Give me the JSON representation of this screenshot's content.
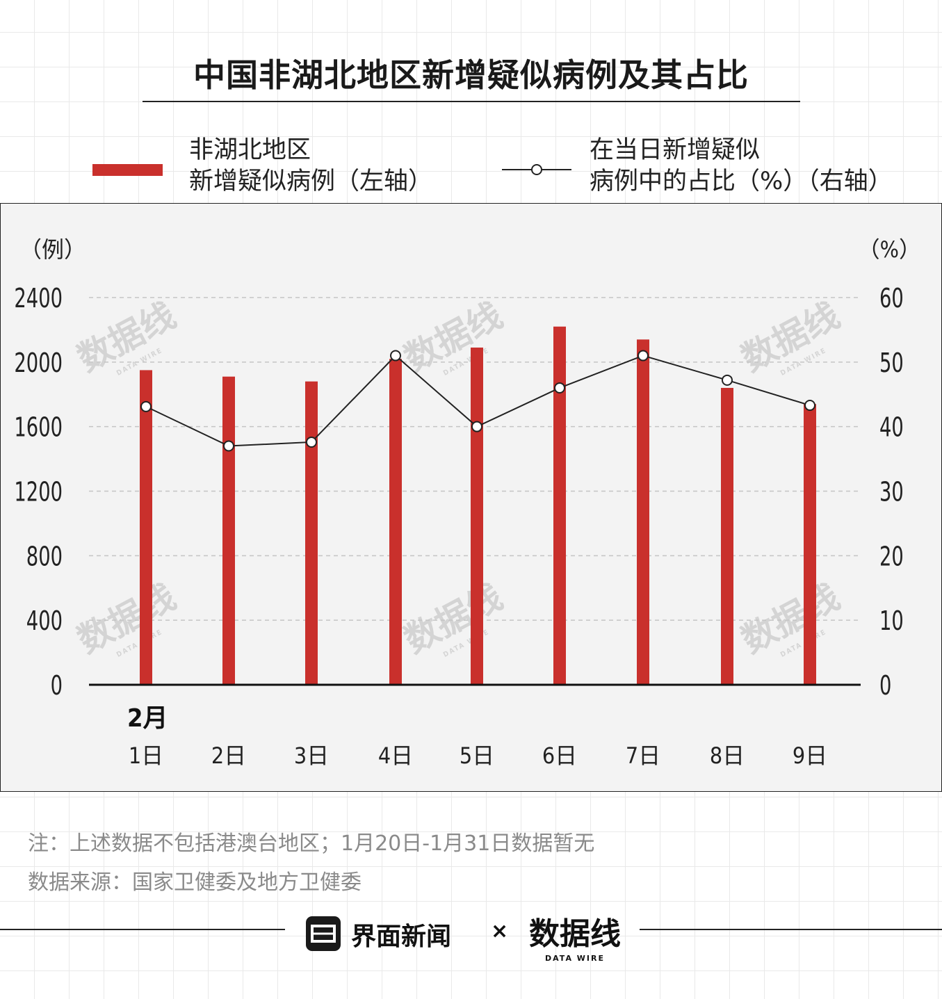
{
  "title": "中国非湖北地区新增疑似病例及其占比",
  "legend": {
    "bar_line1": "非湖北地区",
    "bar_line2": "新增疑似病例（左轴）",
    "line_line1": "在当日新增疑似",
    "line_line2": "病例中的占比（%）（右轴）"
  },
  "axis": {
    "left_unit": "（例）",
    "right_unit": "（%）",
    "month_label": "2月"
  },
  "chart_data": {
    "type": "bar",
    "title": "中国非湖北地区新增疑似病例及其占比",
    "categories": [
      "1日",
      "2日",
      "3日",
      "4日",
      "5日",
      "6日",
      "7日",
      "8日",
      "9日"
    ],
    "x_group_label": "2月",
    "left_axis": {
      "label": "（例）",
      "ylim": [
        0,
        2400
      ],
      "ticks": [
        0,
        400,
        800,
        1200,
        1600,
        2000,
        2400
      ]
    },
    "right_axis": {
      "label": "（%）",
      "ylim": [
        0,
        60
      ],
      "ticks": [
        0,
        10,
        20,
        30,
        40,
        50,
        60
      ]
    },
    "series": [
      {
        "name": "非湖北地区新增疑似病例（左轴）",
        "type": "bar",
        "axis": "left",
        "color": "#c9302c",
        "values": [
          1950,
          1910,
          1880,
          2020,
          2090,
          2220,
          2140,
          1840,
          1740
        ]
      },
      {
        "name": "在当日新增疑似病例中的占比（%）（右轴）",
        "type": "line",
        "axis": "right",
        "color": "#222222",
        "values": [
          43.1,
          37.0,
          37.6,
          51.0,
          40.0,
          46.0,
          51.0,
          47.2,
          43.3
        ]
      }
    ],
    "grid": true,
    "legend_position": "top"
  },
  "notes": {
    "note": "注：上述数据不包括港澳台地区；1月20日-1月31日数据暂无",
    "source": "数据来源：国家卫健委及地方卫健委"
  },
  "footer": {
    "brand": "界面新闻",
    "separator": "×",
    "logo_text": "数据线",
    "logo_sub": "DATA WIRE"
  }
}
